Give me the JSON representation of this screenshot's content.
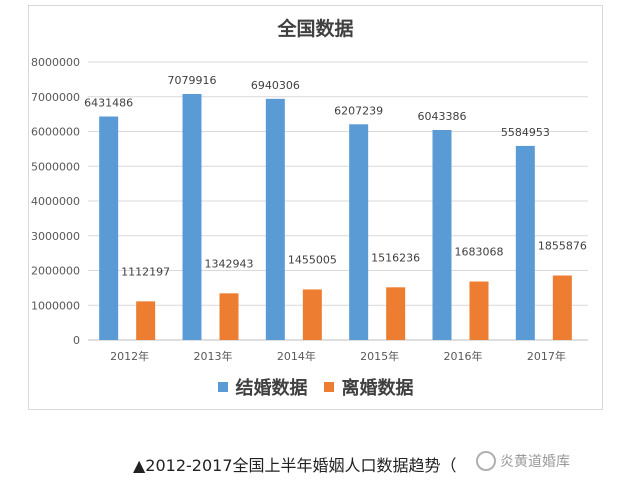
{
  "chart_data": {
    "type": "bar",
    "title": "全国数据",
    "categories": [
      "2012年",
      "2013年",
      "2014年",
      "2015年",
      "2016年",
      "2017年"
    ],
    "series": [
      {
        "name": "结婚数据",
        "color": "#5b9bd5",
        "values": [
          6431486,
          7079916,
          6940306,
          6207239,
          6043386,
          5584953
        ]
      },
      {
        "name": "离婚数据",
        "color": "#ed7d31",
        "values": [
          1112197,
          1342943,
          1455005,
          1516236,
          1683068,
          1855876
        ]
      }
    ],
    "ylim": [
      0,
      8000000
    ],
    "yticks": [
      0,
      1000000,
      2000000,
      3000000,
      4000000,
      5000000,
      6000000,
      7000000,
      8000000
    ],
    "grid": true,
    "legend_position": "bottom"
  },
  "caption": "▲2012-2017全国上半年婚姻人口数据趋势（",
  "watermark_text": "炎黄道婚库"
}
